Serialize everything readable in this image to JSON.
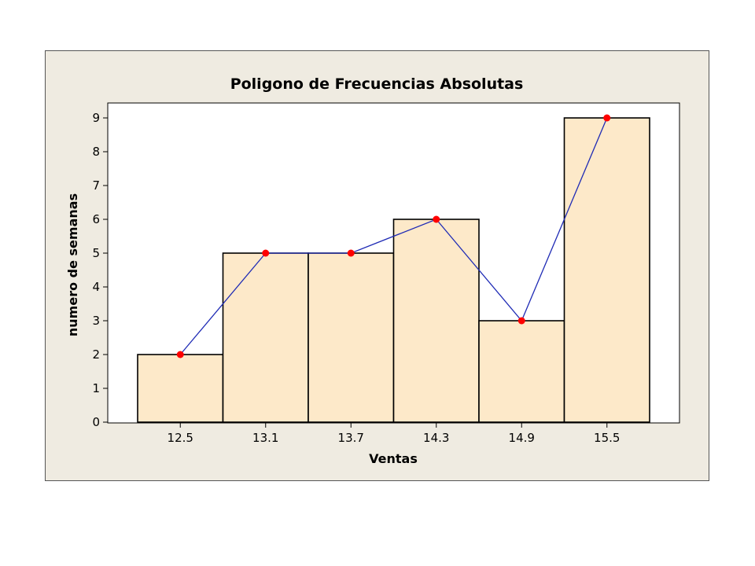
{
  "chart_data": {
    "type": "bar",
    "title": "Poligono de Frecuencias Absolutas",
    "xlabel": "Ventas",
    "ylabel": "numero de semanas",
    "categories": [
      "12.5",
      "13.1",
      "13.7",
      "14.3",
      "14.9",
      "15.5"
    ],
    "values": [
      2,
      5,
      5,
      6,
      3,
      9
    ],
    "ylim": [
      0,
      9
    ],
    "yticks": [
      0,
      1,
      2,
      3,
      4,
      5,
      6,
      7,
      8,
      9
    ],
    "grid": false,
    "legend": "none",
    "overlay": {
      "type": "line",
      "markers": true,
      "values": [
        2,
        5,
        5,
        6,
        3,
        9
      ]
    },
    "colors": {
      "bar_fill": "#fde9c9",
      "bar_stroke": "#000000",
      "line": "#1f2bb5",
      "marker": "#ff0000",
      "panel": "#efebe1",
      "plot": "#ffffff"
    }
  }
}
